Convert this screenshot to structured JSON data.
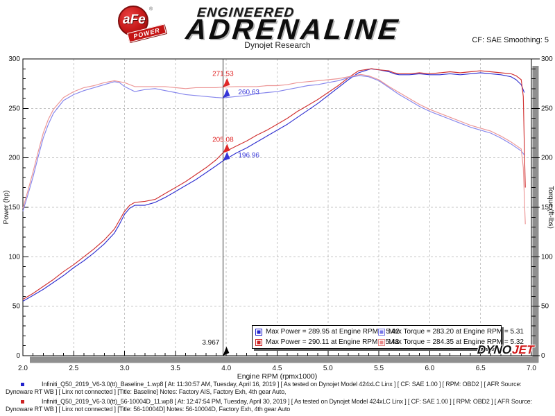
{
  "header": {
    "afe_text": "aFe",
    "afe_registered": "®",
    "power_text": "POWER",
    "engineered": "ENGINEERED",
    "adrenaline": "ADRENALINE",
    "subtitle": "Dynojet Research",
    "smoothing": "CF: SAE Smoothing: 5"
  },
  "dynojet_logo": {
    "dyno": "DYNO",
    "jet": "JET"
  },
  "chart_data": {
    "type": "line",
    "title": "Dynojet Research",
    "xlabel": "Engine RPM (rpmx1000)",
    "ylabel_left": "Power (hp)",
    "ylabel_right": "Torque (ft-lbs)",
    "xlim": [
      2.0,
      7.0
    ],
    "ylim": [
      0,
      300
    ],
    "x_major": 0.5,
    "x_minor": 0.1,
    "y_major": 50,
    "y_minor": 10,
    "grid": "dashed-on-majors",
    "legend_position": "bottom-center-overlay",
    "frame_shadow_color": "#8f8f8f",
    "grid_color": "#c4c4c4",
    "series": [
      {
        "name": "baseline-power",
        "axis": "left",
        "color": "#2f2fd0",
        "legend": "Max Power = 289.95 at Engine RPM = 5.42",
        "points": [
          [
            2.0,
            55
          ],
          [
            2.1,
            61
          ],
          [
            2.2,
            67
          ],
          [
            2.3,
            74
          ],
          [
            2.4,
            81
          ],
          [
            2.5,
            89
          ],
          [
            2.6,
            96
          ],
          [
            2.7,
            104
          ],
          [
            2.8,
            113
          ],
          [
            2.9,
            124
          ],
          [
            2.95,
            133
          ],
          [
            3.0,
            143
          ],
          [
            3.05,
            149
          ],
          [
            3.1,
            152
          ],
          [
            3.2,
            152
          ],
          [
            3.3,
            155
          ],
          [
            3.4,
            160
          ],
          [
            3.5,
            166
          ],
          [
            3.6,
            172
          ],
          [
            3.7,
            178
          ],
          [
            3.8,
            185
          ],
          [
            3.9,
            192
          ],
          [
            3.967,
            196.96
          ],
          [
            4.1,
            205
          ],
          [
            4.2,
            210
          ],
          [
            4.3,
            216
          ],
          [
            4.4,
            222
          ],
          [
            4.5,
            228
          ],
          [
            4.6,
            234
          ],
          [
            4.7,
            241
          ],
          [
            4.8,
            248
          ],
          [
            4.9,
            255
          ],
          [
            5.0,
            263
          ],
          [
            5.1,
            271
          ],
          [
            5.2,
            279
          ],
          [
            5.3,
            286
          ],
          [
            5.42,
            289.95
          ],
          [
            5.5,
            289
          ],
          [
            5.6,
            287
          ],
          [
            5.65,
            285
          ],
          [
            5.7,
            284
          ],
          [
            5.8,
            284
          ],
          [
            5.9,
            285
          ],
          [
            6.0,
            284
          ],
          [
            6.1,
            284
          ],
          [
            6.2,
            285
          ],
          [
            6.3,
            284
          ],
          [
            6.4,
            285
          ],
          [
            6.5,
            286
          ],
          [
            6.6,
            285
          ],
          [
            6.7,
            284
          ],
          [
            6.8,
            282
          ],
          [
            6.85,
            279
          ],
          [
            6.9,
            274
          ],
          [
            6.93,
            266
          ]
        ]
      },
      {
        "name": "modified-power",
        "axis": "left",
        "color": "#d02f2f",
        "legend": "Max Power = 290.11 at Engine RPM = 5.43",
        "points": [
          [
            2.0,
            57
          ],
          [
            2.1,
            63
          ],
          [
            2.2,
            70
          ],
          [
            2.3,
            77
          ],
          [
            2.4,
            85
          ],
          [
            2.5,
            92
          ],
          [
            2.6,
            100
          ],
          [
            2.7,
            108
          ],
          [
            2.8,
            117
          ],
          [
            2.9,
            128
          ],
          [
            2.95,
            137
          ],
          [
            3.0,
            146
          ],
          [
            3.05,
            152
          ],
          [
            3.1,
            155
          ],
          [
            3.2,
            156
          ],
          [
            3.3,
            158
          ],
          [
            3.4,
            164
          ],
          [
            3.5,
            170
          ],
          [
            3.6,
            176
          ],
          [
            3.7,
            183
          ],
          [
            3.8,
            190
          ],
          [
            3.9,
            198
          ],
          [
            3.967,
            205.08
          ],
          [
            4.1,
            212
          ],
          [
            4.2,
            217
          ],
          [
            4.3,
            223
          ],
          [
            4.4,
            228
          ],
          [
            4.5,
            234
          ],
          [
            4.6,
            240
          ],
          [
            4.7,
            247
          ],
          [
            4.8,
            253
          ],
          [
            4.9,
            259
          ],
          [
            5.0,
            266
          ],
          [
            5.1,
            273
          ],
          [
            5.2,
            281
          ],
          [
            5.3,
            288
          ],
          [
            5.43,
            290.11
          ],
          [
            5.5,
            289
          ],
          [
            5.6,
            288
          ],
          [
            5.65,
            286
          ],
          [
            5.7,
            285
          ],
          [
            5.8,
            285
          ],
          [
            5.9,
            286
          ],
          [
            6.0,
            285
          ],
          [
            6.1,
            286
          ],
          [
            6.2,
            287
          ],
          [
            6.3,
            286
          ],
          [
            6.4,
            287
          ],
          [
            6.5,
            288
          ],
          [
            6.6,
            287
          ],
          [
            6.7,
            286
          ],
          [
            6.8,
            285
          ],
          [
            6.85,
            283
          ],
          [
            6.9,
            279
          ],
          [
            6.92,
            262
          ],
          [
            6.93,
            215
          ],
          [
            6.94,
            170
          ]
        ]
      },
      {
        "name": "baseline-torque",
        "axis": "right",
        "color": "#8585ec",
        "legend": "Max Torque = 283.20 at Engine RPM = 5.31",
        "points": [
          [
            2.0,
            146
          ],
          [
            2.05,
            163
          ],
          [
            2.1,
            181
          ],
          [
            2.15,
            201
          ],
          [
            2.2,
            220
          ],
          [
            2.25,
            234
          ],
          [
            2.3,
            245
          ],
          [
            2.4,
            258
          ],
          [
            2.5,
            264
          ],
          [
            2.6,
            268
          ],
          [
            2.7,
            271
          ],
          [
            2.8,
            274
          ],
          [
            2.9,
            277
          ],
          [
            2.95,
            276
          ],
          [
            3.0,
            272
          ],
          [
            3.1,
            267
          ],
          [
            3.2,
            269
          ],
          [
            3.3,
            270
          ],
          [
            3.4,
            268
          ],
          [
            3.5,
            266
          ],
          [
            3.6,
            264
          ],
          [
            3.7,
            263
          ],
          [
            3.8,
            262
          ],
          [
            3.9,
            261
          ],
          [
            3.967,
            260.63
          ],
          [
            4.1,
            262
          ],
          [
            4.2,
            263
          ],
          [
            4.3,
            265
          ],
          [
            4.4,
            266
          ],
          [
            4.5,
            267
          ],
          [
            4.6,
            269
          ],
          [
            4.7,
            271
          ],
          [
            4.8,
            273
          ],
          [
            4.9,
            274
          ],
          [
            5.0,
            276
          ],
          [
            5.1,
            278
          ],
          [
            5.2,
            281
          ],
          [
            5.31,
            283.2
          ],
          [
            5.4,
            282
          ],
          [
            5.5,
            278
          ],
          [
            5.6,
            271
          ],
          [
            5.7,
            264
          ],
          [
            5.8,
            258
          ],
          [
            5.9,
            252
          ],
          [
            6.0,
            247
          ],
          [
            6.1,
            243
          ],
          [
            6.2,
            239
          ],
          [
            6.3,
            235
          ],
          [
            6.4,
            231
          ],
          [
            6.5,
            228
          ],
          [
            6.6,
            225
          ],
          [
            6.7,
            220
          ],
          [
            6.8,
            214
          ],
          [
            6.9,
            207
          ],
          [
            6.93,
            203
          ]
        ]
      },
      {
        "name": "modified-torque",
        "axis": "right",
        "color": "#ec9595",
        "legend": "Max Torque = 284.35 at Engine RPM = 5.32",
        "points": [
          [
            2.0,
            149
          ],
          [
            2.05,
            167
          ],
          [
            2.1,
            186
          ],
          [
            2.15,
            206
          ],
          [
            2.2,
            225
          ],
          [
            2.25,
            239
          ],
          [
            2.3,
            249
          ],
          [
            2.4,
            261
          ],
          [
            2.5,
            267
          ],
          [
            2.6,
            271
          ],
          [
            2.7,
            273
          ],
          [
            2.8,
            276
          ],
          [
            2.9,
            278
          ],
          [
            3.0,
            276
          ],
          [
            3.1,
            272
          ],
          [
            3.2,
            272
          ],
          [
            3.3,
            272
          ],
          [
            3.4,
            272
          ],
          [
            3.5,
            271
          ],
          [
            3.6,
            270
          ],
          [
            3.7,
            271
          ],
          [
            3.8,
            271
          ],
          [
            3.9,
            271
          ],
          [
            3.967,
            271.53
          ],
          [
            4.1,
            272
          ],
          [
            4.2,
            272
          ],
          [
            4.3,
            272
          ],
          [
            4.4,
            273
          ],
          [
            4.5,
            273
          ],
          [
            4.6,
            274
          ],
          [
            4.7,
            276
          ],
          [
            4.8,
            277
          ],
          [
            4.9,
            278
          ],
          [
            5.0,
            279
          ],
          [
            5.1,
            280
          ],
          [
            5.2,
            282
          ],
          [
            5.32,
            284.35
          ],
          [
            5.4,
            283
          ],
          [
            5.5,
            279
          ],
          [
            5.6,
            272
          ],
          [
            5.7,
            266
          ],
          [
            5.8,
            260
          ],
          [
            5.9,
            254
          ],
          [
            6.0,
            249
          ],
          [
            6.1,
            245
          ],
          [
            6.2,
            241
          ],
          [
            6.3,
            237
          ],
          [
            6.4,
            233
          ],
          [
            6.5,
            230
          ],
          [
            6.6,
            227
          ],
          [
            6.7,
            222
          ],
          [
            6.8,
            216
          ],
          [
            6.9,
            209
          ],
          [
            6.92,
            190
          ],
          [
            6.94,
            133
          ]
        ]
      }
    ],
    "cursor": {
      "rpm": 3.967,
      "label": "3.967",
      "markers": [
        {
          "label": "271.53",
          "value": 271.53,
          "color": "#e02828",
          "side": "left"
        },
        {
          "label": "260.63",
          "value": 260.63,
          "color": "#3535d8",
          "side": "right"
        },
        {
          "label": "205.08",
          "value": 205.08,
          "color": "#e02828",
          "side": "left"
        },
        {
          "label": "196.96",
          "value": 196.96,
          "color": "#3535d8",
          "side": "right"
        }
      ]
    }
  },
  "legend": {
    "items": [
      {
        "label": "Max Power = 289.95 at Engine RPM = 5.42",
        "color": "#2222cc"
      },
      {
        "label": "Max Power = 290.11 at Engine RPM = 5.43",
        "color": "#cc2222"
      },
      {
        "label": "Max Torque = 283.20 at Engine RPM = 5.31",
        "color": "#7878e8"
      },
      {
        "label": "Max Torque = 284.35 at Engine RPM = 5.32",
        "color": "#e88888"
      }
    ]
  },
  "footer": {
    "runs": [
      {
        "bullet_color": "#2222cc",
        "text": "Infiniti_Q50_2019_V6-3.0(tt)_Baseline_1.wp8 [ At: 11:30:57 AM, Tuesday, April 16, 2019 ] [ As tested on Dynojet Model 424xLC Linx ] [ CF: SAE 1.00 ] [ RPM: OBD2 ] [ AFR Source: Dynoware RT WB ] [ Linx not connected ] [Title: Baseline]  Notes: Factory AIS, Factory Exh, 4th gear Auto,"
      },
      {
        "bullet_color": "#cc2222",
        "text": "Infiniti_Q50_2019_V6-3.0(tt)_56-10004D_11.wp8 [ At: 12:47:54 PM, Tuesday, April 30, 2019 ] [ As tested on Dynojet Model 424xLC Linx ] [ CF: SAE 1.00 ] [ RPM: OBD2 ] [ AFR Source: Dynoware RT WB ] [ Linx not connected ] [Title: 56-10004D]  Notes: 56-10004D, Factory Exh, 4th gear Auto"
      }
    ]
  }
}
